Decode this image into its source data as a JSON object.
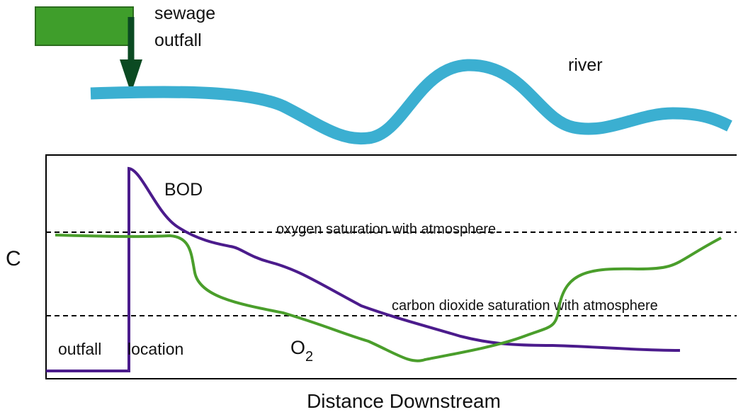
{
  "outfall_label": [
    "sewage",
    "outfall"
  ],
  "river_label": "river",
  "y_axis_label": "C",
  "x_axis_label": "Distance Downstream",
  "bod_label": "BOD",
  "o2_label": {
    "base": "O",
    "sub": "2"
  },
  "oxygen_line_label": "oxygen saturation with atmosphere",
  "co2_line_label": "carbon dioxide saturation with atmosphere",
  "location_label": [
    "outfall",
    "location"
  ]
}
